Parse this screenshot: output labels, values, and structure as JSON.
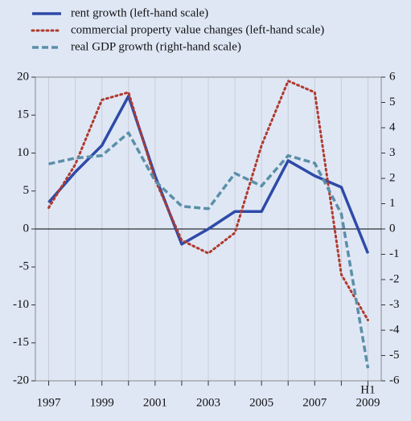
{
  "chart_data": {
    "type": "line",
    "categories": [
      "1997",
      null,
      "1999",
      null,
      "2001",
      null,
      "2003",
      null,
      "2005",
      null,
      "2007",
      null,
      "2009"
    ],
    "annotations": [
      "H1"
    ],
    "series": [
      {
        "name": "rent growth (left-hand scale)",
        "color": "#2e4aa8",
        "style": "solid",
        "axis": "y",
        "values": [
          3.5,
          7.5,
          11,
          17.5,
          7,
          -2,
          0,
          2.3,
          2.3,
          9,
          7,
          5.5,
          -3.2
        ]
      },
      {
        "name": "commercial property value changes (left-hand scale)",
        "color": "#b03a2e",
        "style": "dotted",
        "axis": "y",
        "values": [
          2.8,
          8.5,
          17,
          18,
          6.5,
          -1.5,
          -3.2,
          -0.5,
          11,
          19.5,
          18,
          -6,
          -12
        ]
      },
      {
        "name": "real GDP growth (right-hand scale)",
        "color": "#5b8fa8",
        "style": "dashed",
        "axis": "y2",
        "values": [
          2.57,
          2.8,
          2.9,
          3.8,
          1.9,
          0.9,
          0.8,
          2.2,
          1.7,
          2.9,
          2.6,
          0.6,
          -5.5
        ]
      }
    ],
    "ylim": [
      -20,
      20
    ],
    "yticks": [
      -20,
      -15,
      -10,
      -5,
      0,
      5,
      10,
      15,
      20
    ],
    "y2lim": [
      -6,
      6
    ],
    "y2ticks": [
      -6,
      -5,
      -4,
      -3,
      -2,
      -1,
      0,
      1,
      2,
      3,
      4,
      5,
      6
    ],
    "grid": true
  }
}
